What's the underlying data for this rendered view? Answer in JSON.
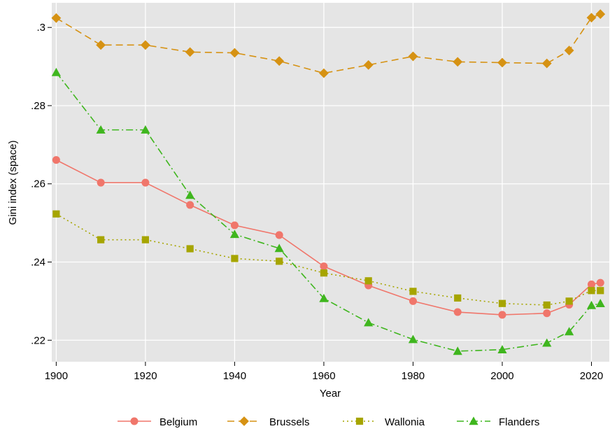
{
  "chart_data": {
    "type": "line",
    "xlabel": "Year",
    "ylabel": "Gini index (space)",
    "xlim": [
      1899,
      2024
    ],
    "ylim": [
      0.2145,
      0.3063
    ],
    "xticks": [
      1900,
      1920,
      1940,
      1960,
      1980,
      2000,
      2020
    ],
    "xtick_labels": [
      "1900",
      "1920",
      "1940",
      "1960",
      "1980",
      "2000",
      "2020"
    ],
    "yticks": [
      0.22,
      0.24,
      0.26,
      0.28,
      0.3
    ],
    "ytick_labels": [
      ".22",
      ".24",
      ".26",
      ".28",
      ".3"
    ],
    "grid": true,
    "legend_position": "bottom",
    "x": [
      1900,
      1910,
      1920,
      1930,
      1940,
      1950,
      1960,
      1970,
      1980,
      1990,
      2000,
      2010,
      2015,
      2020,
      2022
    ],
    "series": [
      {
        "name": "Belgium",
        "color": "#f0766b",
        "marker": "circle",
        "dash": "solid",
        "values": [
          0.2661,
          0.2603,
          0.2603,
          0.2546,
          0.2494,
          0.2469,
          0.2389,
          0.234,
          0.23,
          0.2272,
          0.2265,
          0.2269,
          0.2291,
          0.2343,
          0.2347
        ]
      },
      {
        "name": "Brussels",
        "color": "#d69213",
        "marker": "diamond",
        "dash": "dashed",
        "values": [
          0.3024,
          0.2955,
          0.2955,
          0.2937,
          0.2935,
          0.2914,
          0.2883,
          0.2904,
          0.2926,
          0.2912,
          0.291,
          0.2908,
          0.2941,
          0.3025,
          0.3034
        ]
      },
      {
        "name": "Wallonia",
        "color": "#a6a500",
        "marker": "square",
        "dash": "dotted",
        "values": [
          0.2523,
          0.2457,
          0.2457,
          0.2434,
          0.2409,
          0.2402,
          0.2372,
          0.2352,
          0.2325,
          0.2308,
          0.2294,
          0.229,
          0.23,
          0.2327,
          0.2327
        ]
      },
      {
        "name": "Flanders",
        "color": "#3fb61e",
        "marker": "triangle",
        "dash": "dashdot",
        "values": [
          0.2885,
          0.2738,
          0.2738,
          0.2571,
          0.2471,
          0.2435,
          0.2307,
          0.2245,
          0.2202,
          0.2172,
          0.2176,
          0.2193,
          0.2222,
          0.2289,
          0.2294
        ]
      }
    ]
  }
}
